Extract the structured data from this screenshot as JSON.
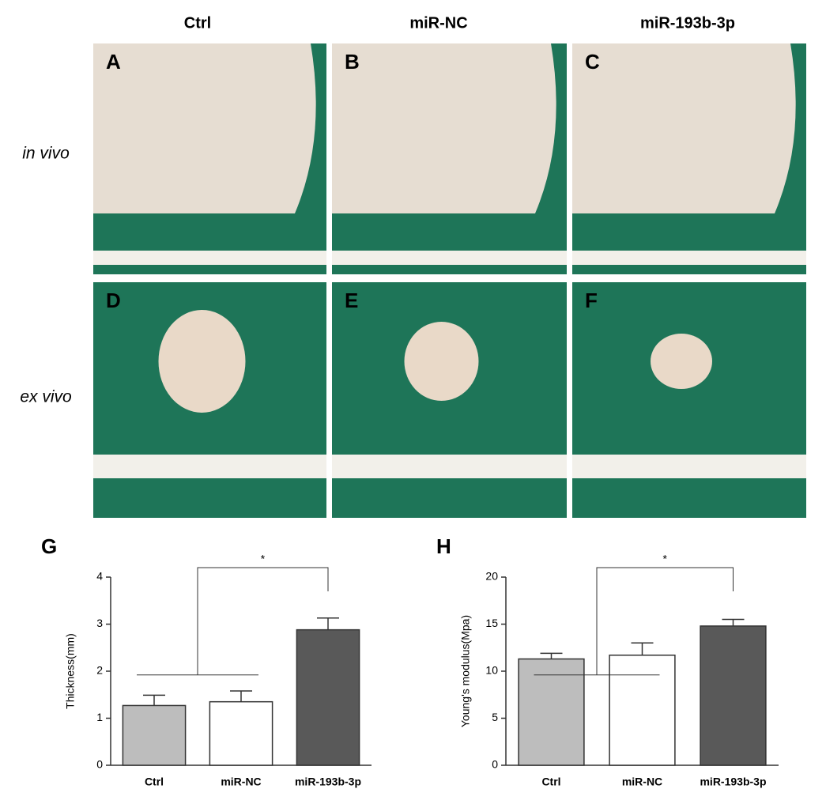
{
  "column_headers": [
    "Ctrl",
    "miR-NC",
    "miR-193b-3p"
  ],
  "row_labels": [
    "in vivo",
    "ex vivo"
  ],
  "panels": [
    "A",
    "B",
    "C",
    "D",
    "E",
    "F"
  ],
  "chart_data": [
    {
      "type": "bar",
      "label": "G",
      "ylabel": "Thickness(mm)",
      "categories": [
        "Ctrl",
        "miR-NC",
        "miR-193b-3p"
      ],
      "values": [
        1.27,
        1.35,
        2.88
      ],
      "errors": [
        0.22,
        0.23,
        0.25
      ],
      "colors": [
        "#bdbdbd",
        "#ffffff",
        "#595959"
      ],
      "ylim": [
        0,
        4
      ],
      "yticks": [
        0,
        1,
        2,
        3,
        4
      ],
      "annotation": "*"
    },
    {
      "type": "bar",
      "label": "H",
      "ylabel": "Young's modulus(Mpa)",
      "categories": [
        "Ctrl",
        "miR-NC",
        "miR-193b-3p"
      ],
      "values": [
        11.3,
        11.7,
        14.8
      ],
      "errors": [
        0.6,
        1.3,
        0.7
      ],
      "colors": [
        "#bdbdbd",
        "#ffffff",
        "#595959"
      ],
      "ylim": [
        0,
        20
      ],
      "yticks": [
        0,
        5,
        10,
        15,
        20
      ],
      "annotation": "*"
    }
  ]
}
